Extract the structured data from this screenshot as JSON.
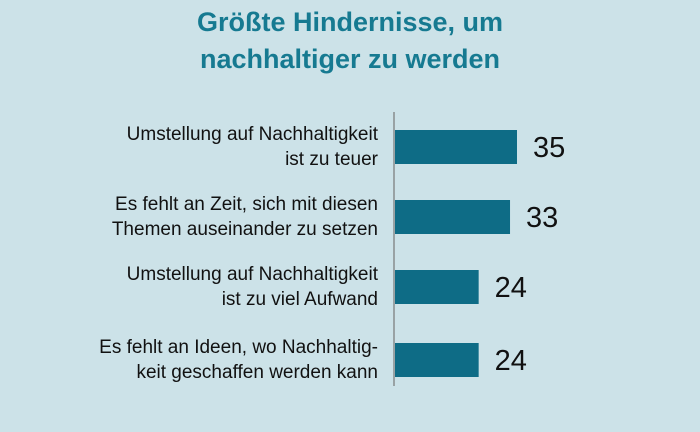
{
  "chart_data": {
    "type": "bar",
    "orientation": "horizontal",
    "title_lines": [
      "Größte Hindernisse, um",
      "nachhaltiger zu werden"
    ],
    "categories": [
      [
        "Umstellung auf Nachhaltigkeit",
        "ist zu teuer"
      ],
      [
        "Es fehlt an Zeit, sich mit diesen",
        "Themen auseinander zu setzen"
      ],
      [
        "Umstellung auf Nachhaltigkeit",
        "ist zu viel Aufwand"
      ],
      [
        "Es fehlt an Ideen, wo Nachhaltig-",
        "keit geschaffen werden kann"
      ]
    ],
    "values": [
      35,
      33,
      24,
      24
    ],
    "value_labels": [
      "35",
      "33",
      "24",
      "24"
    ],
    "xlim": [
      0,
      40
    ],
    "grid": false,
    "colors": {
      "bar": "#0e6c86",
      "title": "#167a91",
      "background": "#cce2e8"
    }
  }
}
